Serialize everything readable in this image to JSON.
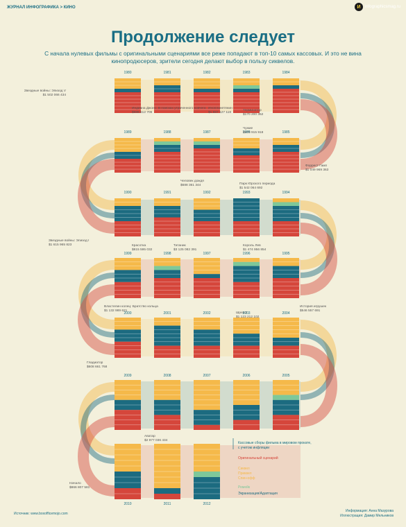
{
  "header": {
    "breadcrumb": "ЖУРНАЛ ИНФОГРАФИКА > ",
    "section": "КИНО",
    "brand": "infographicsmag.ru"
  },
  "title": "Продолжение следует",
  "subtitle": "С начала нулевых фильмы с оригинальными сценариями все реже попадают в топ-10 самых кассовых. И это не вина кинопродюсеров, зрители сегодня делают выбор в пользу сиквелов.",
  "colors": {
    "original": "#d5463b",
    "sequel": "#f5b94a",
    "remake": "#7ec89a",
    "adaptation": "#1c6b80",
    "bg": "#f3f0dc"
  },
  "chart_data": {
    "type": "bar",
    "title": "Продолжение следует",
    "stack_order": [
      "sequel",
      "remake",
      "adaptation",
      "original"
    ],
    "years": [
      {
        "y": "1980",
        "s": [
          3,
          0,
          1,
          6
        ]
      },
      {
        "y": "1981",
        "s": [
          2,
          0,
          2,
          6
        ]
      },
      {
        "y": "1982",
        "s": [
          3,
          0,
          1,
          6
        ]
      },
      {
        "y": "1983",
        "s": [
          2,
          1,
          1,
          6
        ]
      },
      {
        "y": "1984",
        "s": [
          2,
          0,
          1,
          7
        ]
      },
      {
        "y": "1989",
        "s": [
          4,
          0,
          2,
          4
        ]
      },
      {
        "y": "1988",
        "s": [
          1,
          1,
          2,
          6
        ]
      },
      {
        "y": "1987",
        "s": [
          1,
          1,
          1,
          7
        ]
      },
      {
        "y": "1986",
        "s": [
          3,
          0,
          2,
          5
        ]
      },
      {
        "y": "1985",
        "s": [
          2,
          0,
          2,
          6
        ]
      },
      {
        "y": "1990",
        "s": [
          2,
          0,
          4,
          4
        ]
      },
      {
        "y": "1991",
        "s": [
          2,
          0,
          3,
          5
        ]
      },
      {
        "y": "1992",
        "s": [
          3,
          0,
          3,
          4
        ]
      },
      {
        "y": "1993",
        "s": [
          0,
          0,
          6,
          4
        ]
      },
      {
        "y": "1994",
        "s": [
          1,
          1,
          4,
          4
        ]
      },
      {
        "y": "1999",
        "s": [
          3,
          0,
          3,
          4
        ]
      },
      {
        "y": "1998",
        "s": [
          2,
          1,
          2,
          5
        ]
      },
      {
        "y": "1997",
        "s": [
          4,
          0,
          1,
          5
        ]
      },
      {
        "y": "1996",
        "s": [
          1,
          1,
          4,
          4
        ]
      },
      {
        "y": "1995",
        "s": [
          2,
          0,
          3,
          5
        ]
      },
      {
        "y": "2000",
        "s": [
          3,
          0,
          3,
          4
        ]
      },
      {
        "y": "2001",
        "s": [
          2,
          0,
          5,
          3
        ]
      },
      {
        "y": "2002",
        "s": [
          3,
          0,
          4,
          3
        ]
      },
      {
        "y": "2003",
        "s": [
          4,
          0,
          3,
          3
        ]
      },
      {
        "y": "2004",
        "s": [
          5,
          0,
          2,
          3
        ]
      },
      {
        "y": "2009",
        "s": [
          4,
          0,
          2,
          4
        ]
      },
      {
        "y": "2008",
        "s": [
          4,
          0,
          3,
          3
        ]
      },
      {
        "y": "2007",
        "s": [
          6,
          0,
          3,
          1
        ]
      },
      {
        "y": "2006",
        "s": [
          5,
          0,
          3,
          2
        ]
      },
      {
        "y": "2005",
        "s": [
          3,
          1,
          3,
          3
        ]
      },
      {
        "y": "2010",
        "s": [
          5,
          0,
          3,
          2
        ]
      },
      {
        "y": "2011",
        "s": [
          8,
          0,
          1,
          1
        ]
      },
      {
        "y": "2012",
        "s": [
          5,
          1,
          4,
          0
        ]
      }
    ],
    "annotations": [
      {
        "text": "Звездные войны: Эпизод V",
        "value": "$1 502 066 434"
      },
      {
        "text": "Индиана Джонс: В поисках утраченного ковчега",
        "value": "$986 512 706"
      },
      {
        "text": "Инопланетянин",
        "value": "$1 887 127 118"
      },
      {
        "text": "Терминатор",
        "value": "$170 200 352"
      },
      {
        "text": "Чужие",
        "value": "$273 915 918"
      },
      {
        "text": "Человек дождя",
        "value": "$688 361 344"
      },
      {
        "text": "Парк Юрского периода",
        "value": "$1 542 064 692"
      },
      {
        "text": "Форрест Гамп",
        "value": "$1 049 969 363"
      },
      {
        "text": "Звездные войны: Эпизод I",
        "value": "$1 615 965 823"
      },
      {
        "text": "Красотка",
        "value": "$815 595 032"
      },
      {
        "text": "Титаник",
        "value": "$3 125 082 391"
      },
      {
        "text": "Король Лев",
        "value": "$1 474 956 854"
      },
      {
        "text": "История игрушек",
        "value": "$546 557 691"
      },
      {
        "text": "Властелин колец: Братство кольца",
        "value": "$1 132 989 621"
      },
      {
        "text": "Шрек 2",
        "value": "$1 123 212 102"
      },
      {
        "text": "Гладиатор",
        "value": "$608 661 768"
      },
      {
        "text": "Аватар",
        "value": "$2 977 036 434"
      },
      {
        "text": "Начало",
        "value": "$866 807 581"
      }
    ]
  },
  "legend": {
    "box": "Кассовые сборы фильма в мировом прокате, с учетом инфляции",
    "original": "Оригинальный сценарий",
    "sequel": [
      "Сиквел",
      "Приквел",
      "Спин-офф"
    ],
    "remake": "Ремейк",
    "adaptation": "Экранизация/Адаптация"
  },
  "footer": {
    "source": "Источник: www.boxofficemojo.com",
    "info": "Информация: Анна Мазурова",
    "illus": "Иллюстрация: Дамир Мельников"
  }
}
